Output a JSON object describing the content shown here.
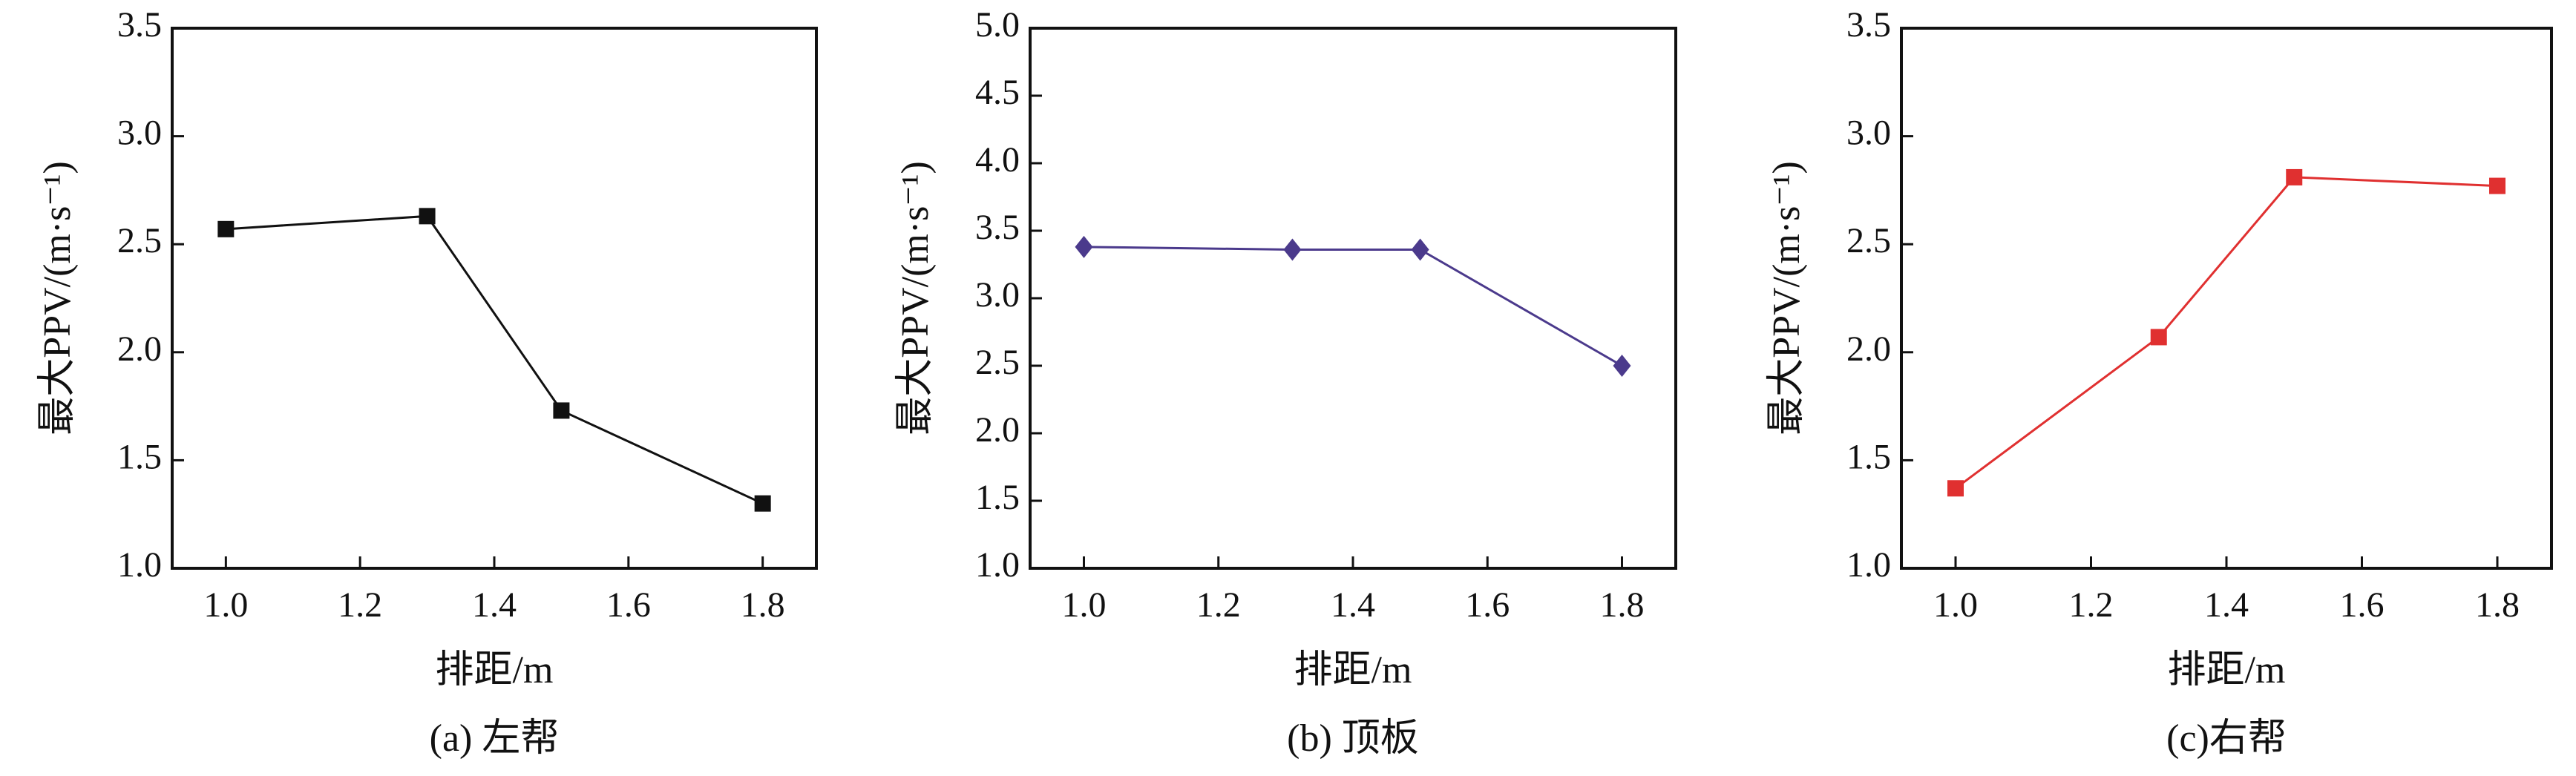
{
  "chart_data": [
    {
      "type": "line",
      "caption": "(a) 左帮",
      "x_label": "排距/m",
      "y_label": "最大PPV/(m·s⁻¹)",
      "xlim": [
        0.92,
        1.88
      ],
      "xticks": [
        {
          "value": 1,
          "label": "1.0"
        },
        1.2,
        1.4,
        1.6,
        1.8
      ],
      "ylim": [
        1,
        3.5
      ],
      "yticks": [
        {
          "value": 1,
          "label": "1.0"
        },
        1.5,
        {
          "value": 2,
          "label": "2.0"
        },
        2.5,
        {
          "value": 3,
          "label": "3.0"
        },
        3.5
      ],
      "x": [
        1.0,
        1.3,
        1.5,
        1.8
      ],
      "series": [
        {
          "color": "#111111",
          "marker": "square",
          "values": [
            2.57,
            2.63,
            1.73,
            1.3
          ]
        }
      ]
    },
    {
      "type": "line",
      "caption": "(b) 顶板",
      "x_label": "排距/m",
      "y_label": "最大PPV/(m·s⁻¹)",
      "xlim": [
        0.92,
        1.88
      ],
      "xticks": [
        {
          "value": 1,
          "label": "1.0"
        },
        1.2,
        1.4,
        1.6,
        1.8
      ],
      "ylim": [
        1,
        5
      ],
      "yticks": [
        {
          "value": 1,
          "label": "1.0"
        },
        1.5,
        {
          "value": 2,
          "label": "2.0"
        },
        2.5,
        {
          "value": 3,
          "label": "3.0"
        },
        3.5,
        {
          "value": 4,
          "label": "4.0"
        },
        4.5,
        {
          "value": 5,
          "label": "5.0"
        }
      ],
      "x": [
        1.0,
        1.31,
        1.5,
        1.8
      ],
      "series": [
        {
          "color": "#4b3a8c",
          "marker": "diamond",
          "values": [
            3.38,
            3.36,
            3.36,
            2.5
          ]
        }
      ]
    },
    {
      "type": "line",
      "caption": "(c)右帮",
      "x_label": "排距/m",
      "y_label": "最大PPV/(m·s⁻¹)",
      "xlim": [
        0.92,
        1.88
      ],
      "xticks": [
        {
          "value": 1,
          "label": "1.0"
        },
        1.2,
        1.4,
        1.6,
        1.8
      ],
      "ylim": [
        1,
        3.5
      ],
      "yticks": [
        {
          "value": 1,
          "label": "1.0"
        },
        1.5,
        {
          "value": 2,
          "label": "2.0"
        },
        2.5,
        {
          "value": 3,
          "label": "3.0"
        },
        3.5
      ],
      "x": [
        1.0,
        1.3,
        1.5,
        1.8
      ],
      "series": [
        {
          "color": "#e03030",
          "marker": "square",
          "values": [
            1.37,
            2.07,
            2.81,
            2.77
          ]
        }
      ]
    }
  ]
}
